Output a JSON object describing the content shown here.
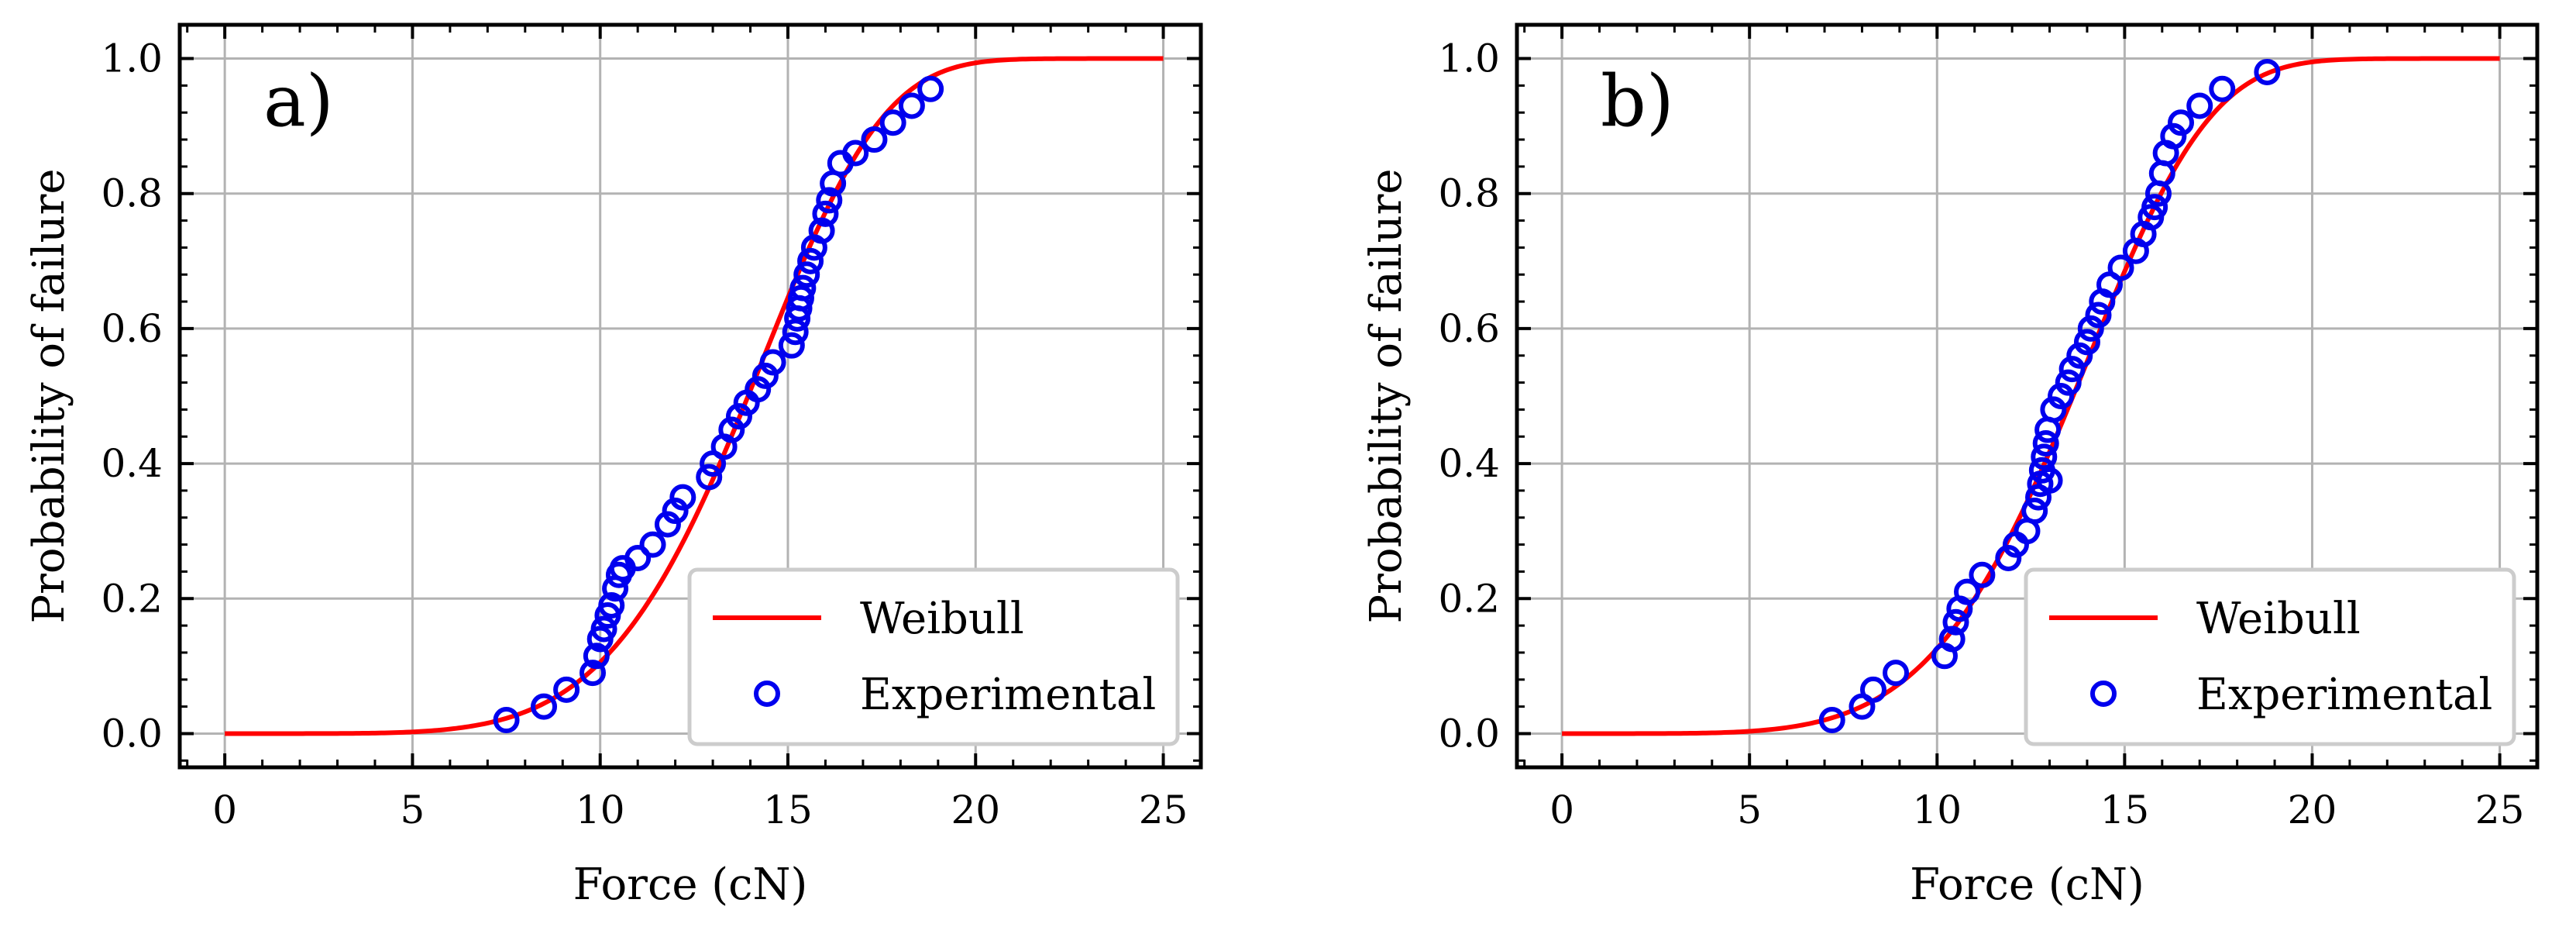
{
  "chart_data": [
    {
      "type": "scatter",
      "panel_label": "a)",
      "xlabel": "Force (cN)",
      "ylabel": "Probability of failure",
      "xlim": [
        -1.2,
        26.0
      ],
      "ylim": [
        -0.05,
        1.05
      ],
      "xticks": [
        0,
        5,
        10,
        15,
        20,
        25
      ],
      "yticks": [
        0.0,
        0.2,
        0.4,
        0.6,
        0.8,
        1.0
      ],
      "xtick_labels": [
        "0",
        "5",
        "10",
        "15",
        "20",
        "25"
      ],
      "ytick_labels": [
        "0.0",
        "0.2",
        "0.4",
        "0.6",
        "0.8",
        "1.0"
      ],
      "grid": true,
      "legend": {
        "position": "lower-right",
        "entries": [
          "Weibull",
          "Experimental"
        ]
      },
      "series": [
        {
          "name": "Weibull",
          "kind": "line",
          "color": "#ff0000",
          "model": "weibull_cdf",
          "scale": 14.9,
          "shape": 5.5,
          "x_range": [
            0,
            25
          ]
        },
        {
          "name": "Experimental",
          "kind": "scatter",
          "color": "#0000ee",
          "x": [
            7.5,
            8.5,
            9.1,
            9.8,
            9.9,
            10.0,
            10.1,
            10.2,
            10.3,
            10.4,
            10.5,
            10.6,
            11.0,
            11.4,
            11.8,
            12.0,
            12.2,
            12.9,
            13.0,
            13.3,
            13.5,
            13.7,
            13.9,
            14.2,
            14.4,
            14.6,
            15.1,
            15.2,
            15.25,
            15.3,
            15.35,
            15.4,
            15.5,
            15.6,
            15.7,
            15.9,
            16.0,
            16.1,
            16.2,
            16.4,
            16.8,
            17.3,
            17.8,
            18.3,
            18.8
          ],
          "y": [
            0.02,
            0.04,
            0.065,
            0.09,
            0.115,
            0.14,
            0.155,
            0.175,
            0.19,
            0.215,
            0.235,
            0.245,
            0.26,
            0.28,
            0.31,
            0.33,
            0.35,
            0.38,
            0.4,
            0.425,
            0.45,
            0.47,
            0.49,
            0.51,
            0.53,
            0.55,
            0.575,
            0.595,
            0.615,
            0.63,
            0.645,
            0.66,
            0.68,
            0.7,
            0.72,
            0.745,
            0.77,
            0.79,
            0.815,
            0.845,
            0.86,
            0.88,
            0.905,
            0.93,
            0.955
          ]
        }
      ]
    },
    {
      "type": "scatter",
      "panel_label": "b)",
      "xlabel": "Force (cN)",
      "ylabel": "Probability of failure",
      "xlim": [
        -1.2,
        26.0
      ],
      "ylim": [
        -0.05,
        1.05
      ],
      "xticks": [
        0,
        5,
        10,
        15,
        20,
        25
      ],
      "yticks": [
        0.0,
        0.2,
        0.4,
        0.6,
        0.8,
        1.0
      ],
      "xtick_labels": [
        "0",
        "5",
        "10",
        "15",
        "20",
        "25"
      ],
      "ytick_labels": [
        "0.0",
        "0.2",
        "0.4",
        "0.6",
        "0.8",
        "1.0"
      ],
      "grid": true,
      "legend": {
        "position": "lower-right",
        "entries": [
          "Weibull",
          "Experimental"
        ]
      },
      "series": [
        {
          "name": "Weibull",
          "kind": "line",
          "color": "#ff0000",
          "model": "weibull_cdf",
          "scale": 14.6,
          "shape": 5.3,
          "x_range": [
            0,
            25
          ]
        },
        {
          "name": "Experimental",
          "kind": "scatter",
          "color": "#0000ee",
          "x": [
            7.2,
            8.0,
            8.3,
            8.9,
            10.2,
            10.4,
            10.5,
            10.6,
            10.8,
            11.2,
            11.9,
            12.1,
            12.4,
            12.6,
            12.7,
            12.75,
            12.8,
            12.85,
            12.9,
            12.95,
            13.0,
            13.1,
            13.3,
            13.5,
            13.6,
            13.8,
            14.0,
            14.1,
            14.3,
            14.4,
            14.6,
            14.9,
            15.3,
            15.5,
            15.7,
            15.8,
            15.9,
            16.0,
            16.1,
            16.3,
            16.5,
            17.0,
            17.6,
            18.8
          ],
          "y": [
            0.02,
            0.04,
            0.065,
            0.09,
            0.115,
            0.14,
            0.165,
            0.185,
            0.21,
            0.235,
            0.26,
            0.28,
            0.3,
            0.33,
            0.35,
            0.37,
            0.39,
            0.41,
            0.43,
            0.45,
            0.375,
            0.48,
            0.5,
            0.52,
            0.54,
            0.56,
            0.58,
            0.6,
            0.62,
            0.64,
            0.665,
            0.69,
            0.715,
            0.74,
            0.765,
            0.78,
            0.8,
            0.83,
            0.86,
            0.885,
            0.905,
            0.93,
            0.955,
            0.98
          ]
        }
      ]
    }
  ]
}
